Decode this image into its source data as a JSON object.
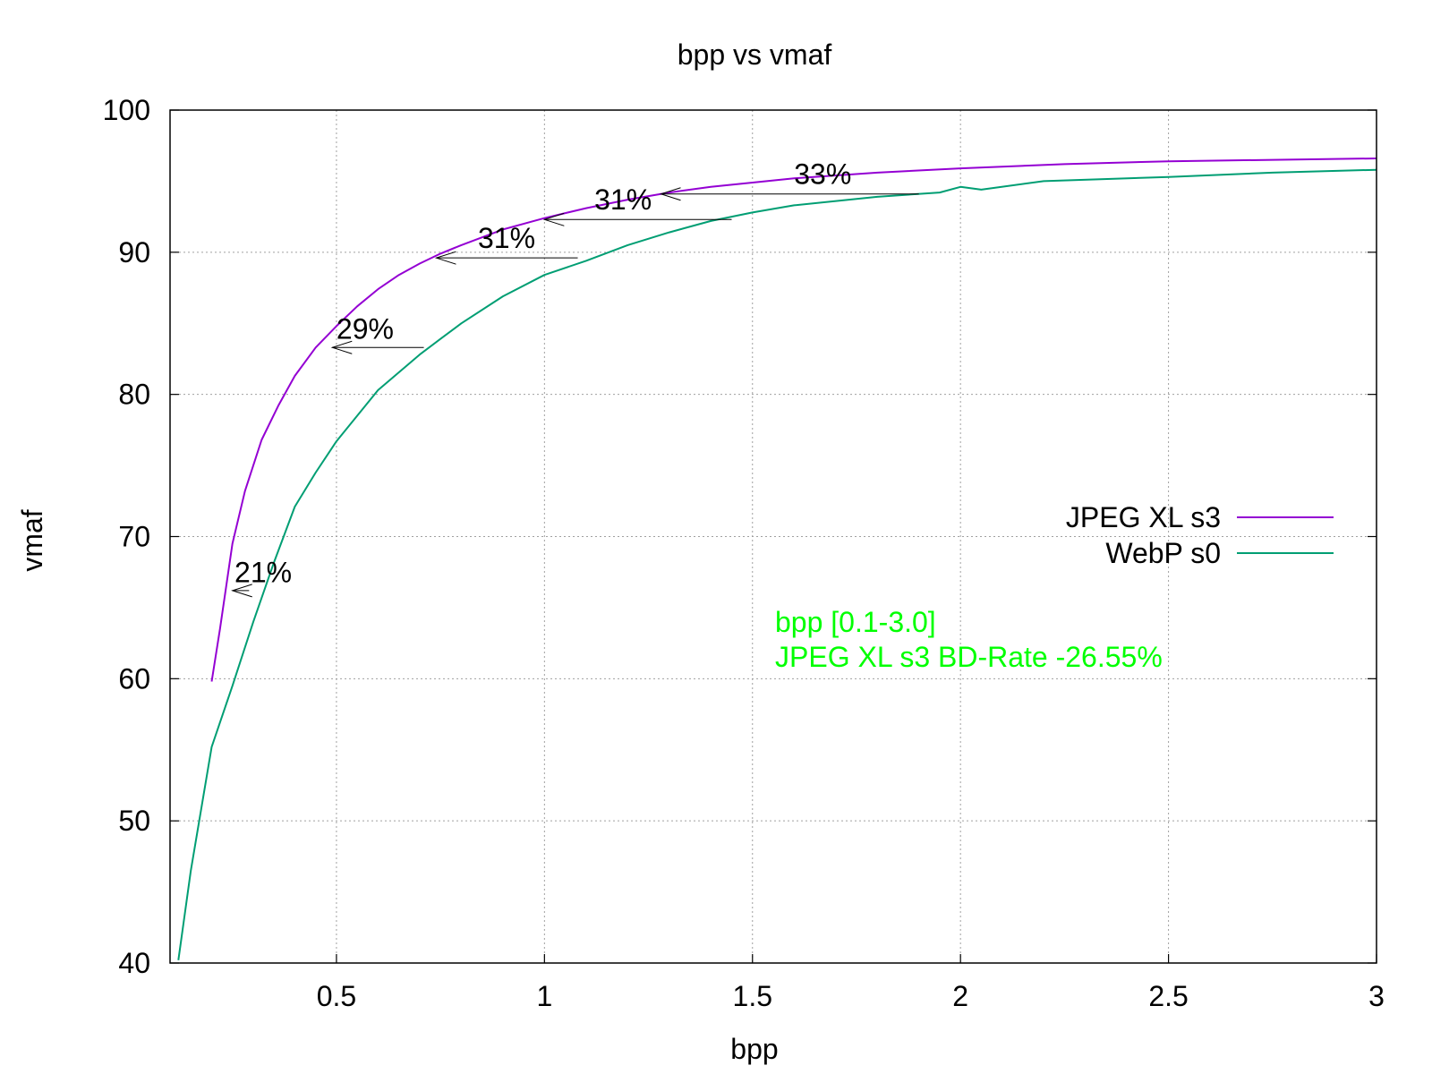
{
  "chart_data": {
    "type": "line",
    "title": "bpp vs vmaf",
    "xlabel": "bpp",
    "ylabel": "vmaf",
    "xlim": [
      0.1,
      3.0
    ],
    "ylim": [
      40,
      100
    ],
    "x_ticks": [
      0.5,
      1,
      1.5,
      2,
      2.5,
      3
    ],
    "x_tick_labels": [
      "0.5",
      "1",
      "1.5",
      "2",
      "2.5",
      "3"
    ],
    "y_ticks": [
      40,
      50,
      60,
      70,
      80,
      90,
      100
    ],
    "y_tick_labels": [
      "40",
      "50",
      "60",
      "70",
      "80",
      "90",
      "100"
    ],
    "grid": true,
    "legend_position": "right",
    "series": [
      {
        "name": "JPEG XL s3",
        "color": "#9400d3",
        "x": [
          0.2,
          0.22,
          0.25,
          0.28,
          0.32,
          0.36,
          0.4,
          0.45,
          0.5,
          0.55,
          0.6,
          0.65,
          0.7,
          0.75,
          0.8,
          0.9,
          1.0,
          1.1,
          1.2,
          1.3,
          1.4,
          1.5,
          1.6,
          1.8,
          2.0,
          2.25,
          2.5,
          2.75,
          3.0
        ],
        "y": [
          59.8,
          63.5,
          69.5,
          73.2,
          76.8,
          79.2,
          81.3,
          83.3,
          84.8,
          86.2,
          87.4,
          88.4,
          89.2,
          89.9,
          90.5,
          91.6,
          92.4,
          93.1,
          93.7,
          94.2,
          94.6,
          94.9,
          95.2,
          95.6,
          95.9,
          96.2,
          96.4,
          96.5,
          96.6
        ]
      },
      {
        "name": "WebP s0",
        "color": "#009e73",
        "x": [
          0.12,
          0.15,
          0.2,
          0.25,
          0.3,
          0.35,
          0.4,
          0.45,
          0.5,
          0.6,
          0.7,
          0.75,
          0.8,
          0.9,
          1.0,
          1.1,
          1.2,
          1.3,
          1.4,
          1.5,
          1.6,
          1.8,
          1.95,
          2.0,
          2.05,
          2.2,
          2.5,
          2.75,
          3.0
        ],
        "y": [
          40.2,
          46.5,
          55.2,
          59.5,
          64.0,
          68.2,
          72.1,
          74.5,
          76.7,
          80.3,
          82.8,
          83.9,
          85.0,
          86.9,
          88.4,
          89.4,
          90.5,
          91.4,
          92.2,
          92.8,
          93.3,
          93.9,
          94.2,
          94.6,
          94.4,
          95.0,
          95.3,
          95.6,
          95.8
        ]
      }
    ],
    "annotations": [
      {
        "text": "21%",
        "x_from": 0.29,
        "x_to": 0.25,
        "y": 66.2,
        "label_x": 0.255,
        "label_y": 66.8
      },
      {
        "text": "29%",
        "x_from": 0.71,
        "x_to": 0.49,
        "y": 83.3,
        "label_x": 0.5,
        "label_y": 83.9
      },
      {
        "text": "31%",
        "x_from": 1.08,
        "x_to": 0.74,
        "y": 89.6,
        "label_x": 0.84,
        "label_y": 90.3
      },
      {
        "text": "31%",
        "x_from": 1.45,
        "x_to": 1.0,
        "y": 92.3,
        "label_x": 1.12,
        "label_y": 93.0
      },
      {
        "text": "33%",
        "x_from": 1.9,
        "x_to": 1.28,
        "y": 94.1,
        "label_x": 1.6,
        "label_y": 94.8
      }
    ],
    "notes": [
      {
        "text": "bpp [0.1-3.0]",
        "color": "#00ff00"
      },
      {
        "text": "JPEG XL s3 BD-Rate -26.55%",
        "color": "#00ff00"
      }
    ]
  }
}
